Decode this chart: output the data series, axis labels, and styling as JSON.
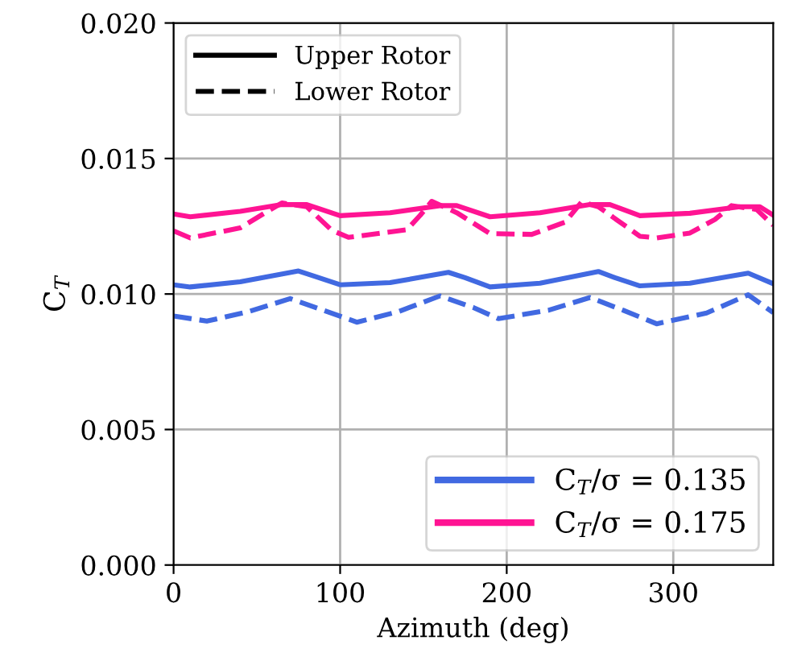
{
  "chart_data": {
    "type": "line",
    "xlabel": "Azimuth (deg)",
    "ylabel": "C$_{T}$",
    "xlim": [
      0,
      360
    ],
    "ylim": [
      0,
      0.02
    ],
    "xticks": [
      0,
      100,
      200,
      300
    ],
    "yticks": [
      {
        "value": 0,
        "label": "0.000"
      },
      {
        "value": 0.005,
        "label": "0.005"
      },
      {
        "value": 0.01,
        "label": "0.010"
      },
      {
        "value": 0.015,
        "label": "0.015"
      },
      {
        "value": 0.02,
        "label": "0.020"
      }
    ],
    "grid": true,
    "legend": "top left",
    "series": [
      {
        "name": "Upper Rotor",
        "color": "#000000",
        "line_style": "solid"
      },
      {
        "name": "Lower Rotor",
        "color": "#000000",
        "line_style": "dashed"
      },
      {
        "name": "C$_{T}$/σ = 0.135",
        "color": "#4169e1",
        "line_style": "solid",
        "x": [
          0,
          10,
          40,
          75,
          85,
          100,
          130,
          165,
          175,
          190,
          220,
          255,
          265,
          280,
          310,
          345,
          360
        ],
        "values": [
          0.01034,
          0.01026,
          0.01045,
          0.01085,
          0.01065,
          0.01034,
          0.01042,
          0.0108,
          0.0106,
          0.01026,
          0.0104,
          0.01083,
          0.0106,
          0.0103,
          0.0104,
          0.01077,
          0.01038
        ]
      },
      {
        "name": "C$_{T}$/σ = 0.175",
        "color": "#ff1493",
        "line_style": "solid",
        "x": [
          0,
          10,
          40,
          65,
          80,
          100,
          130,
          160,
          170,
          190,
          220,
          250,
          262,
          280,
          310,
          340,
          352,
          360
        ],
        "values": [
          0.01295,
          0.01285,
          0.01305,
          0.0133,
          0.0133,
          0.01289,
          0.013,
          0.01326,
          0.01326,
          0.01285,
          0.013,
          0.0133,
          0.0133,
          0.01289,
          0.01298,
          0.01322,
          0.01322,
          0.01291
        ]
      },
      {
        "color": "#4169e1",
        "line_style": "dashed",
        "x": [
          0,
          20,
          45,
          70,
          90,
          110,
          135,
          160,
          180,
          195,
          225,
          250,
          270,
          290,
          320,
          345,
          360
        ],
        "values": [
          0.00919,
          0.009,
          0.00935,
          0.00983,
          0.0094,
          0.00896,
          0.00935,
          0.00993,
          0.0095,
          0.00909,
          0.0094,
          0.00987,
          0.0094,
          0.0089,
          0.0093,
          0.00997,
          0.00931
        ]
      },
      {
        "color": "#ff1493",
        "line_style": "dashed",
        "x": [
          0,
          10,
          40,
          55,
          65,
          80,
          95,
          105,
          140,
          148,
          155,
          170,
          190,
          215,
          235,
          245,
          255,
          280,
          290,
          310,
          325,
          335,
          350,
          360
        ],
        "values": [
          0.01233,
          0.01207,
          0.01244,
          0.013,
          0.01336,
          0.01322,
          0.01235,
          0.01209,
          0.01237,
          0.0129,
          0.01342,
          0.013,
          0.01223,
          0.0122,
          0.01265,
          0.0134,
          0.01322,
          0.01213,
          0.01207,
          0.01225,
          0.01275,
          0.01326,
          0.01312,
          0.01254
        ]
      }
    ]
  }
}
